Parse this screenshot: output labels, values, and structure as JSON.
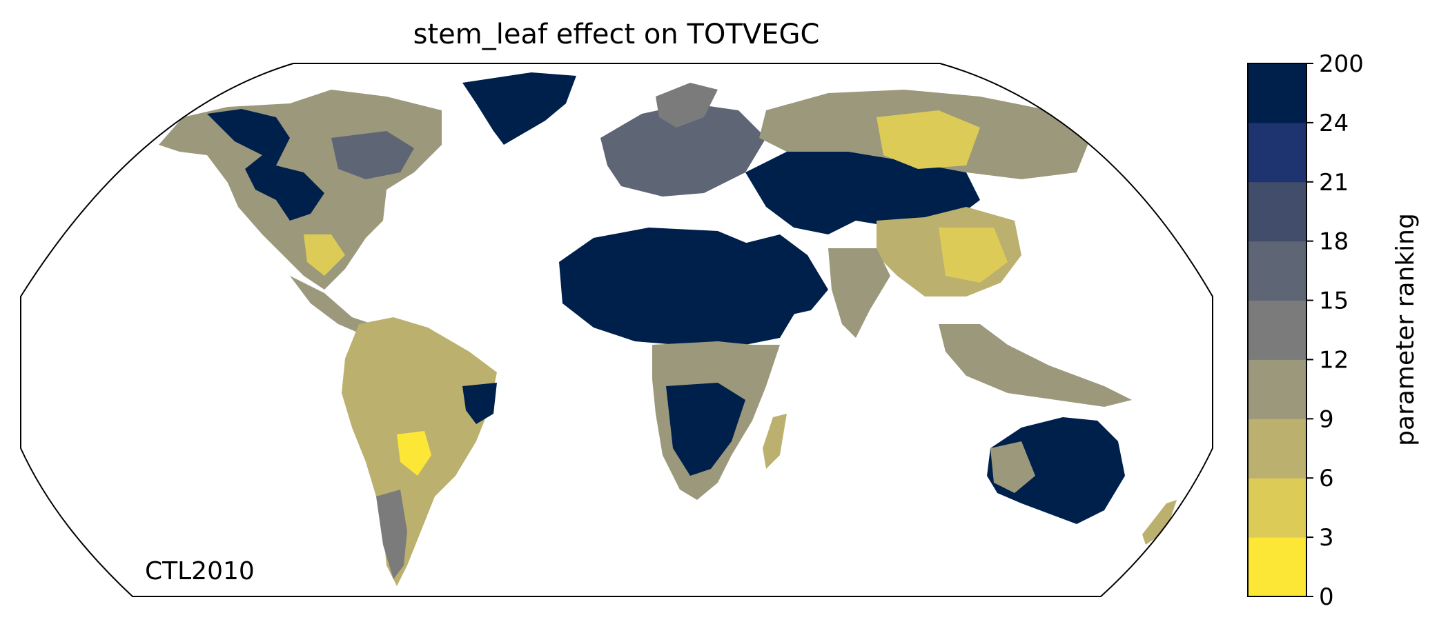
{
  "title": "stem_leaf effect on TOTVEGC",
  "corner_label": "CTL2010",
  "colorbar": {
    "label": "parameter ranking",
    "ticks": [
      "0",
      "3",
      "6",
      "9",
      "12",
      "15",
      "18",
      "21",
      "24",
      "200"
    ],
    "colors": [
      "#fde736",
      "#ddcb58",
      "#bcb06f",
      "#9c987b",
      "#7c7b7c",
      "#5e6575",
      "#414d6b",
      "#1d3470",
      "#00204c"
    ]
  },
  "map": {
    "projection": "robinson",
    "coastline_color": "#808080",
    "background": "#ffffff",
    "dominant_rank_bins": {
      "north_africa_sahara": "200",
      "arabia": "200",
      "central_asia": "200",
      "greenland": "200",
      "tibet_china": "6",
      "siberia": "6",
      "southeast_asia": "9",
      "amazon": "9",
      "central_africa": "9",
      "southern_africa": "200",
      "australia": "200",
      "north_america": "9",
      "europe": "18"
    }
  }
}
